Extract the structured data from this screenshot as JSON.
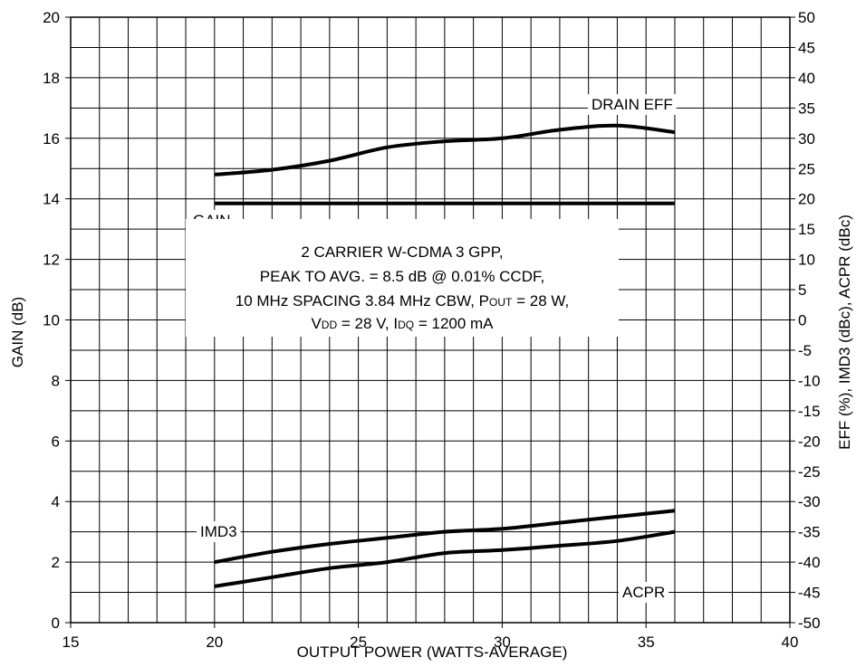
{
  "chart_data": {
    "type": "line",
    "xlabel": "OUTPUT POWER (WATTS-AVERAGE)",
    "ylabel": "GAIN (dB)",
    "y2label": "EFF (%), IMD3 (dBc), ACPR (dBc)",
    "xlim": [
      15,
      40
    ],
    "ylim": [
      0,
      20
    ],
    "y2lim": [
      -50,
      50
    ],
    "xticks": [
      15,
      20,
      25,
      30,
      35,
      40
    ],
    "yticks": [
      0,
      2,
      4,
      6,
      8,
      10,
      12,
      14,
      16,
      18,
      20
    ],
    "y2ticks": [
      50,
      45,
      40,
      35,
      30,
      25,
      20,
      15,
      10,
      5,
      0,
      -5,
      -10,
      -15,
      -20,
      -25,
      -30,
      -35,
      -40,
      -45,
      -50
    ],
    "grid": true,
    "series": [
      {
        "name": "DRAIN EFF",
        "axis": "right",
        "x": [
          20,
          22,
          24,
          26,
          28,
          30,
          32,
          34,
          36
        ],
        "y": [
          24,
          24.8,
          26.3,
          28.5,
          29.5,
          30,
          31.4,
          32.1,
          31
        ]
      },
      {
        "name": "GAIN",
        "axis": "left",
        "x": [
          20,
          22,
          24,
          26,
          28,
          30,
          32,
          34,
          36
        ],
        "y": [
          13.85,
          13.85,
          13.85,
          13.85,
          13.85,
          13.85,
          13.85,
          13.85,
          13.85
        ]
      },
      {
        "name": "IMD3",
        "axis": "right",
        "x": [
          20,
          22,
          24,
          26,
          28,
          30,
          32,
          34,
          36
        ],
        "y": [
          -40,
          -38.3,
          -37,
          -36,
          -35,
          -34.5,
          -33.5,
          -32.5,
          -31.5
        ]
      },
      {
        "name": "ACPR",
        "axis": "right",
        "x": [
          20,
          22,
          24,
          26,
          28,
          30,
          32,
          34,
          36
        ],
        "y": [
          -44,
          -42.5,
          -41,
          -40,
          -38.5,
          -38,
          -37.3,
          -36.5,
          -35
        ]
      }
    ],
    "annotation": {
      "lines": [
        "2 CARRIER W-CDMA 3 GPP,",
        "PEAK TO  AVG. = 8.5 dB @ 0.01% CCDF,",
        "10 MHz SPACING 3.84 MHz CBW, P",
        "V",
        "DD",
        " = 28 V, I",
        "DQ",
        " = 1200 mA"
      ],
      "pout_sub": "OUT",
      "pout_tail": " = 28 W,"
    }
  }
}
